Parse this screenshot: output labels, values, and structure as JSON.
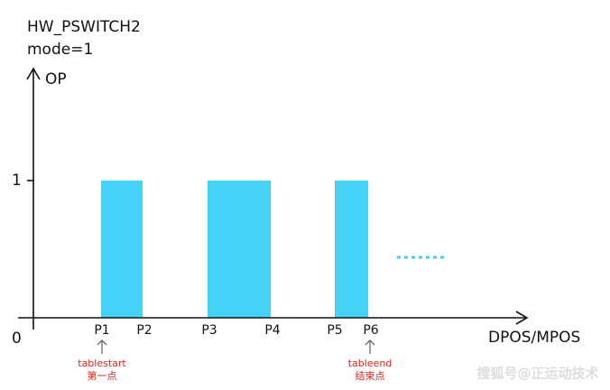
{
  "header": {
    "title": "HW_PSWITCH2",
    "subtitle": "mode=1"
  },
  "axes": {
    "y_label": "OP",
    "x_label": "DPOS/MPOS",
    "origin": "0",
    "level": "1"
  },
  "points": [
    "P1",
    "P2",
    "P3",
    "P4",
    "P5",
    "P6"
  ],
  "annotations": {
    "start": {
      "label": "tablestart",
      "note": "第一点"
    },
    "end": {
      "label": "tableend",
      "note": "结束点"
    }
  },
  "watermark": "搜狐号@正运动技术"
}
